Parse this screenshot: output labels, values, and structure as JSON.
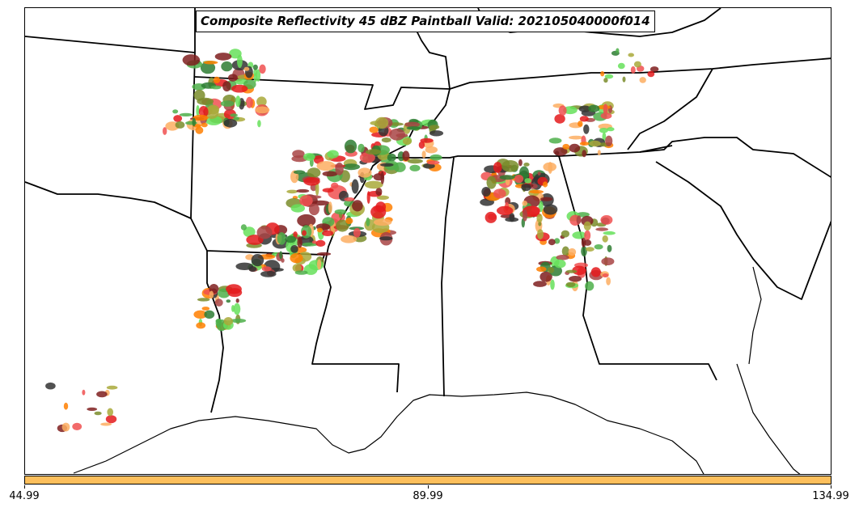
{
  "title": "Composite Reflectivity 45 dBZ Paintball Valid: 202105040000f014",
  "colorbar": {
    "color": "#fdbf5c",
    "ticks": [
      "44.99",
      "89.99",
      "134.99"
    ]
  },
  "palette": [
    "#e41a1c",
    "#ff7f00",
    "#fdae61",
    "#4daf4a",
    "#66e05a",
    "#7a8c2a",
    "#a9a939",
    "#7f1f1f",
    "#a84444",
    "#333333",
    "#2e7d32",
    "#f05050"
  ]
}
